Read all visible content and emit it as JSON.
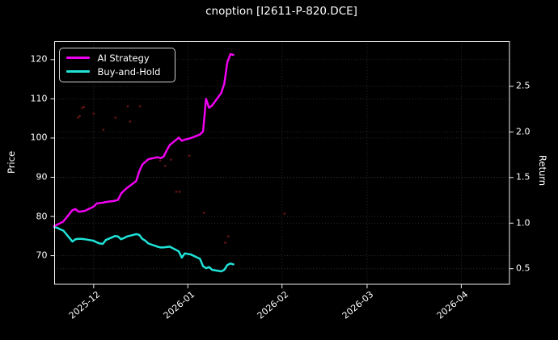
{
  "colors": {
    "background": "#000000",
    "text": "#ffffff",
    "spine": "#f2f2f2",
    "grid": "#333333",
    "ai_strategy": "#f000f0",
    "buy_and_hold": "#1fe3d7",
    "scatter_markers": "#6e1616",
    "legend_border": "#cfcfcf"
  },
  "chart_data": {
    "type": "line",
    "title": "cnoption [I2611-P-820.DCE]",
    "grid": "dotted",
    "legend_position": "upper-left",
    "left_axis": {
      "label": "Price",
      "tick_values": [
        70,
        80,
        90,
        100,
        110,
        120
      ],
      "tick_labels": [
        "70",
        "80",
        "90",
        "100",
        "110",
        "120"
      ],
      "min": 62.6,
      "max": 124.7
    },
    "right_axis": {
      "label": "Return",
      "tick_values": [
        0.5,
        1.0,
        1.5,
        2.0,
        2.5
      ],
      "tick_labels": [
        "0.5",
        "1.0",
        "1.5",
        "2.0",
        "2.5"
      ],
      "min": 0.325,
      "max": 2.995
    },
    "x_range": [
      "2025-11-18",
      "2026-04-17"
    ],
    "x_ticks": [
      {
        "date": "2025-12-01",
        "label": "2025-12"
      },
      {
        "date": "2026-01-01",
        "label": "2026-01"
      },
      {
        "date": "2026-02-01",
        "label": "2026-02"
      },
      {
        "date": "2026-03-01",
        "label": "2026-03"
      },
      {
        "date": "2026-04-01",
        "label": "2026-04"
      }
    ],
    "dates": [
      "2025-11-18",
      "2025-11-19",
      "2025-11-20",
      "2025-11-21",
      "2025-11-24",
      "2025-11-25",
      "2025-11-26",
      "2025-11-27",
      "2025-11-28",
      "2025-12-01",
      "2025-12-02",
      "2025-12-03",
      "2025-12-04",
      "2025-12-05",
      "2025-12-08",
      "2025-12-09",
      "2025-12-10",
      "2025-12-11",
      "2025-12-12",
      "2025-12-15",
      "2025-12-16",
      "2025-12-17",
      "2025-12-18",
      "2025-12-19",
      "2025-12-22",
      "2025-12-23",
      "2025-12-24",
      "2025-12-25",
      "2025-12-26",
      "2025-12-29",
      "2025-12-30",
      "2025-12-31",
      "2026-01-02",
      "2026-01-05",
      "2026-01-06",
      "2026-01-07",
      "2026-01-08",
      "2026-01-09",
      "2026-01-12",
      "2026-01-13",
      "2026-01-14",
      "2026-01-15",
      "2026-01-16"
    ],
    "series": [
      {
        "name": "AI Strategy",
        "color": "#f000f0",
        "values": [
          77.5,
          77.9,
          78.3,
          78.7,
          81.6,
          81.9,
          81.2,
          81.3,
          81.4,
          82.5,
          83.3,
          83.4,
          83.5,
          83.7,
          84.0,
          84.2,
          85.8,
          86.6,
          87.3,
          89.0,
          91.5,
          93.2,
          93.9,
          94.6,
          95.1,
          94.9,
          95.2,
          96.8,
          98.2,
          100.1,
          99.3,
          99.6,
          100.0,
          100.9,
          101.7,
          110.0,
          107.7,
          108.3,
          111.5,
          113.9,
          119.3,
          121.4,
          121.2
        ]
      },
      {
        "name": "Buy-and-Hold",
        "color": "#1fe3d7",
        "values": [
          77.3,
          77.1,
          76.7,
          76.4,
          73.6,
          74.2,
          74.3,
          74.3,
          74.2,
          73.8,
          73.4,
          73.1,
          73.0,
          74.0,
          75.0,
          74.9,
          74.2,
          74.5,
          74.9,
          75.5,
          75.3,
          74.3,
          73.8,
          73.1,
          72.3,
          72.1,
          72.1,
          72.2,
          72.3,
          71.1,
          69.5,
          70.6,
          70.3,
          69.2,
          67.3,
          66.8,
          67.1,
          66.4,
          66.0,
          66.4,
          67.6,
          68.0,
          67.8
        ]
      }
    ],
    "scatter_markers": {
      "color": "#6e1616",
      "points": [
        {
          "day": 9.8,
          "price": 107.9
        },
        {
          "day": 8.4,
          "price": 105.6
        },
        {
          "day": 13.0,
          "price": 106.2
        },
        {
          "day": 16.2,
          "price": 102.1
        },
        {
          "day": 20.2,
          "price": 105.2
        },
        {
          "day": 24.2,
          "price": 108.1
        },
        {
          "day": 28.2,
          "price": 108.1
        },
        {
          "day": 25.0,
          "price": 104.2
        },
        {
          "day": 7.9,
          "price": 105.2
        },
        {
          "day": 9.2,
          "price": 107.7
        },
        {
          "day": 34.9,
          "price": 94.3
        },
        {
          "day": 36.5,
          "price": 92.9
        },
        {
          "day": 38.4,
          "price": 94.5
        },
        {
          "day": 40.2,
          "price": 86.3
        },
        {
          "day": 41.3,
          "price": 86.3
        },
        {
          "day": 49.3,
          "price": 80.9
        },
        {
          "day": 56.3,
          "price": 73.3
        },
        {
          "day": 44.5,
          "price": 95.5
        },
        {
          "day": 75.8,
          "price": 80.7
        },
        {
          "day": 57.3,
          "price": 74.9
        }
      ]
    }
  }
}
